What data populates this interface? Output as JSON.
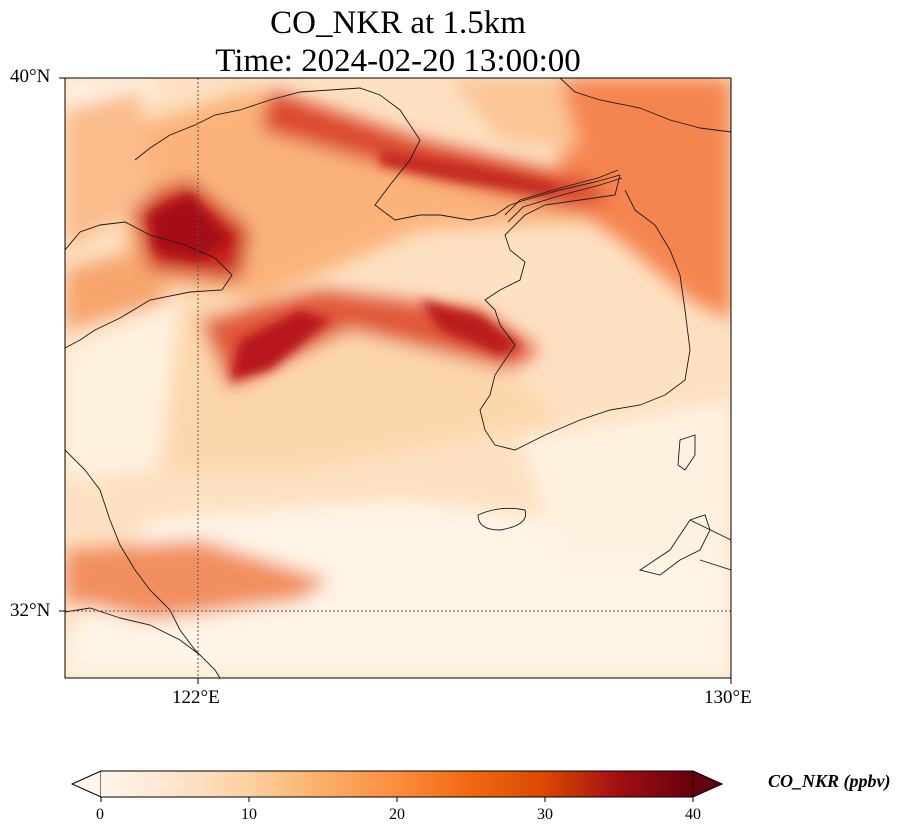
{
  "title": {
    "line1": "CO_NKR at 1.5km",
    "line2": "Time: 2024-02-20 13:00:00"
  },
  "map": {
    "lon_range": [
      120,
      130
    ],
    "lat_range": [
      31,
      40
    ],
    "lat_ticks": [
      {
        "value": 40,
        "label": "40°N"
      },
      {
        "value": 32,
        "label": "32°N"
      }
    ],
    "lon_ticks": [
      {
        "value": 122,
        "label": "122°E"
      },
      {
        "value": 130,
        "label": "130°E"
      }
    ],
    "gridlines": [
      {
        "axis": "lon",
        "value": 122
      },
      {
        "axis": "lat",
        "value": 32
      }
    ]
  },
  "colorbar": {
    "title": "CO_NKR (ppbv)",
    "min": 0,
    "max": 40,
    "extend": "both",
    "ticks": [
      "0",
      "10",
      "20",
      "30",
      "40"
    ],
    "colormap": [
      "#fff5eb",
      "#fee6ce",
      "#fdd0a2",
      "#fdae6b",
      "#fd8d3c",
      "#f16913",
      "#d94801",
      "#a50f15",
      "#67000d"
    ]
  }
}
